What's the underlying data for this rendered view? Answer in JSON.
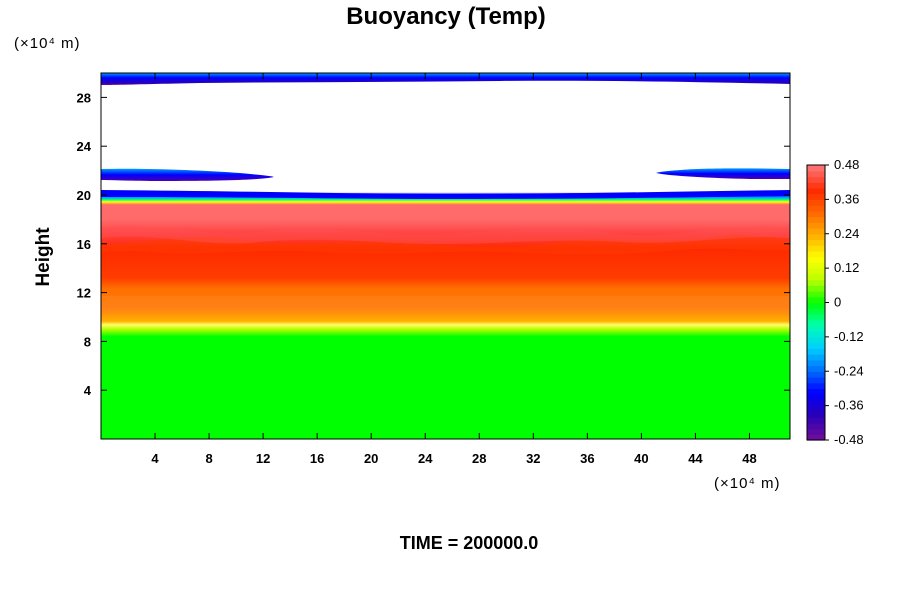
{
  "chart_data": {
    "type": "heatmap",
    "title": "Buoyancy (Temp)",
    "ylabel": "Height",
    "x_unit_label": "(×10⁴ m)",
    "y_unit_label": "(×10⁴ m)",
    "xlim": [
      0,
      51
    ],
    "ylim": [
      0,
      30
    ],
    "x_ticks": [
      4,
      8,
      12,
      16,
      20,
      24,
      28,
      32,
      36,
      40,
      44,
      48
    ],
    "y_ticks": [
      4,
      8,
      12,
      16,
      20,
      24,
      28
    ],
    "colorbar": {
      "range": [
        -0.48,
        0.48
      ],
      "ticks": [
        "0.48",
        "0.36",
        "0.24",
        "0.12",
        "0",
        "-0.12",
        "-0.24",
        "-0.36",
        "-0.48"
      ],
      "levels": 48,
      "colors": [
        "#6a0d9c",
        "#2a00b8",
        "#0000ff",
        "#0070ff",
        "#00d0ff",
        "#00ffb0",
        "#00ff00",
        "#b8ff00",
        "#ffff00",
        "#ffb000",
        "#ff6a00",
        "#ff2a00",
        "#ff7070"
      ]
    },
    "bands": [
      {
        "from": 0,
        "to": 9.1,
        "value": 0.0
      },
      {
        "from": 9.1,
        "to": 9.7,
        "value": 0.12
      },
      {
        "from": 9.7,
        "to": 12.8,
        "value": 0.3
      },
      {
        "from": 12.8,
        "to": 16.3,
        "value": 0.4
      },
      {
        "from": 16.3,
        "to": 19.4,
        "value": 0.46
      },
      {
        "from": 19.4,
        "to": 20.2,
        "value": -0.24
      },
      {
        "from": 29.2,
        "to": 30.0,
        "value": -0.36
      }
    ],
    "lenses": [
      {
        "x_from": 0,
        "x_to": 14,
        "y": 21.6,
        "value": -0.36
      },
      {
        "x_from": 40,
        "x_to": 51,
        "y": 21.6,
        "value": -0.36
      }
    ],
    "time_label": "TIME = 200000.0"
  }
}
